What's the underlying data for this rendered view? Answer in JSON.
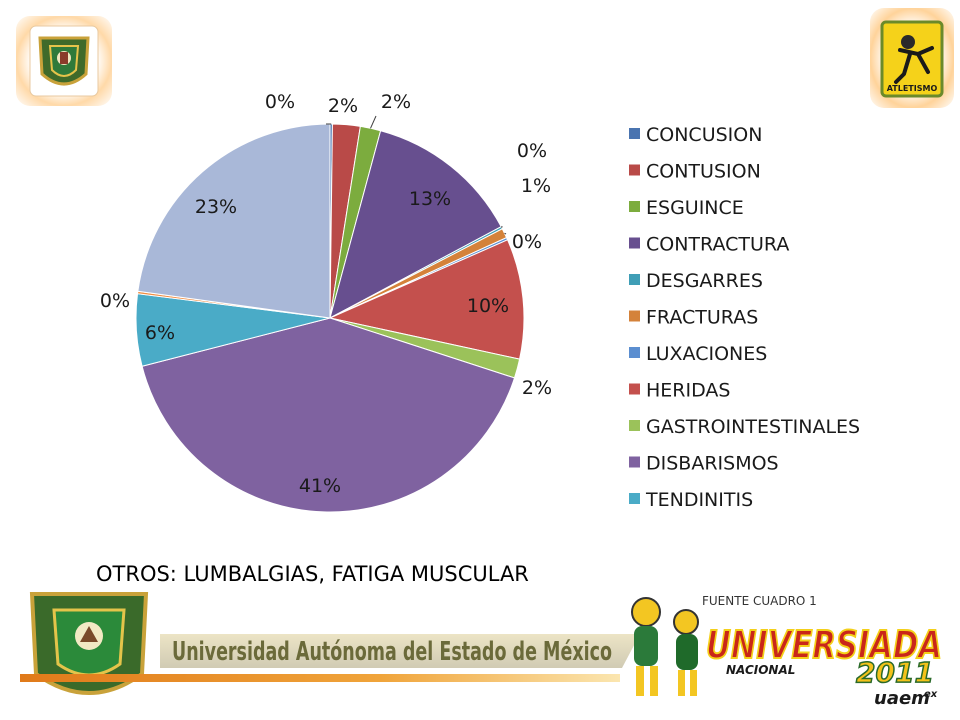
{
  "chart_data": {
    "type": "pie",
    "title": "",
    "slices": [
      {
        "label": "CONCUSION",
        "value": 0.2,
        "display": "0%",
        "color": "#4a74b0"
      },
      {
        "label": "CONTUSION",
        "value": 2.3,
        "display": "2%",
        "color": "#b94a48"
      },
      {
        "label": "ESGUINCE",
        "value": 1.7,
        "display": "2%",
        "color": "#7cac3e"
      },
      {
        "label": "CONTRACTURA",
        "value": 13.0,
        "display": "13%",
        "color": "#674f8f"
      },
      {
        "label": "DESGARRES",
        "value": 0.2,
        "display": "0%",
        "color": "#3f9eb6"
      },
      {
        "label": "FRACTURAS",
        "value": 0.8,
        "display": "1%",
        "color": "#d4823a"
      },
      {
        "label": "LUXACIONES",
        "value": 0.2,
        "display": "0%",
        "color": "#5b8ed0"
      },
      {
        "label": "HERIDAS",
        "value": 10.0,
        "display": "10%",
        "color": "#c4504d"
      },
      {
        "label": "GASTROINTESTINALES",
        "value": 1.6,
        "display": "2%",
        "color": "#9bc25a"
      },
      {
        "label": "DISBARISMOS",
        "value": 41.0,
        "display": "41%",
        "color": "#7f62a0"
      },
      {
        "label": "TENDINITIS",
        "value": 6.0,
        "display": "6%",
        "color": "#4aabc7"
      },
      {
        "label": "",
        "value": 0.2,
        "display": "0%",
        "color": "#f08e45"
      },
      {
        "label": "",
        "value": 22.8,
        "display": "23%",
        "color": "#a9b8d8"
      }
    ],
    "legend_position": "right"
  },
  "footnote": "OTROS: LUMBALGIAS, FATIGA MUSCULAR",
  "source": "FUENTE CUADRO 1",
  "banner": {
    "university": "Universidad Autónoma del Estado de México",
    "event_word": "UNIVERSIADA",
    "event_sub": "NACIONAL",
    "event_year": "2011",
    "event_host": "uaem",
    "event_host_sup": "ex"
  },
  "logo_right_text": "ATLETISMO"
}
